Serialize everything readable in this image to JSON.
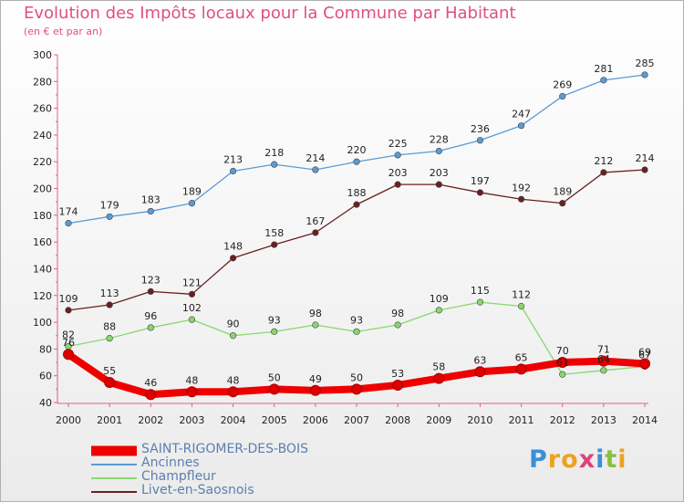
{
  "chart_data": {
    "type": "line",
    "title": "Evolution des Impôts locaux pour la Commune par Habitant",
    "subtitle": "(en € et par an)",
    "xlabel": "",
    "ylabel": "",
    "ylim": [
      40,
      300
    ],
    "yticks": [
      40,
      60,
      80,
      100,
      120,
      140,
      160,
      180,
      200,
      220,
      240,
      260,
      280,
      300
    ],
    "categories": [
      "2000",
      "2001",
      "2002",
      "2003",
      "2004",
      "2005",
      "2006",
      "2007",
      "2008",
      "2009",
      "2010",
      "2011",
      "2012",
      "2013",
      "2014"
    ],
    "series": [
      {
        "name": "SAINT-RIGOMER-DES-BOIS",
        "color": "#ee0000",
        "values": [
          76,
          55,
          46,
          48,
          48,
          50,
          49,
          50,
          53,
          58,
          63,
          65,
          70,
          71,
          69
        ]
      },
      {
        "name": "Ancinnes",
        "color": "#5b9bd5",
        "values": [
          174,
          179,
          183,
          189,
          213,
          218,
          214,
          220,
          225,
          228,
          236,
          247,
          269,
          281,
          285
        ]
      },
      {
        "name": "Champfleur",
        "color": "#88d86e",
        "values": [
          82,
          88,
          96,
          102,
          90,
          93,
          98,
          93,
          98,
          109,
          115,
          112,
          61,
          64,
          67
        ]
      },
      {
        "name": "Livet-en-Saosnois",
        "color": "#6a2020",
        "values": [
          109,
          113,
          123,
          121,
          148,
          158,
          167,
          188,
          203,
          203,
          197,
          192,
          189,
          212,
          214
        ]
      }
    ],
    "legend_position": "bottom-left",
    "grid": false
  },
  "brand": {
    "letters": [
      "P",
      "r",
      "o",
      "x",
      "i",
      "t",
      "i"
    ],
    "colors": [
      "#3a8fd8",
      "#f0a020",
      "#f0a020",
      "#e04080",
      "#3a8fd8",
      "#88c040",
      "#f0a020"
    ]
  }
}
